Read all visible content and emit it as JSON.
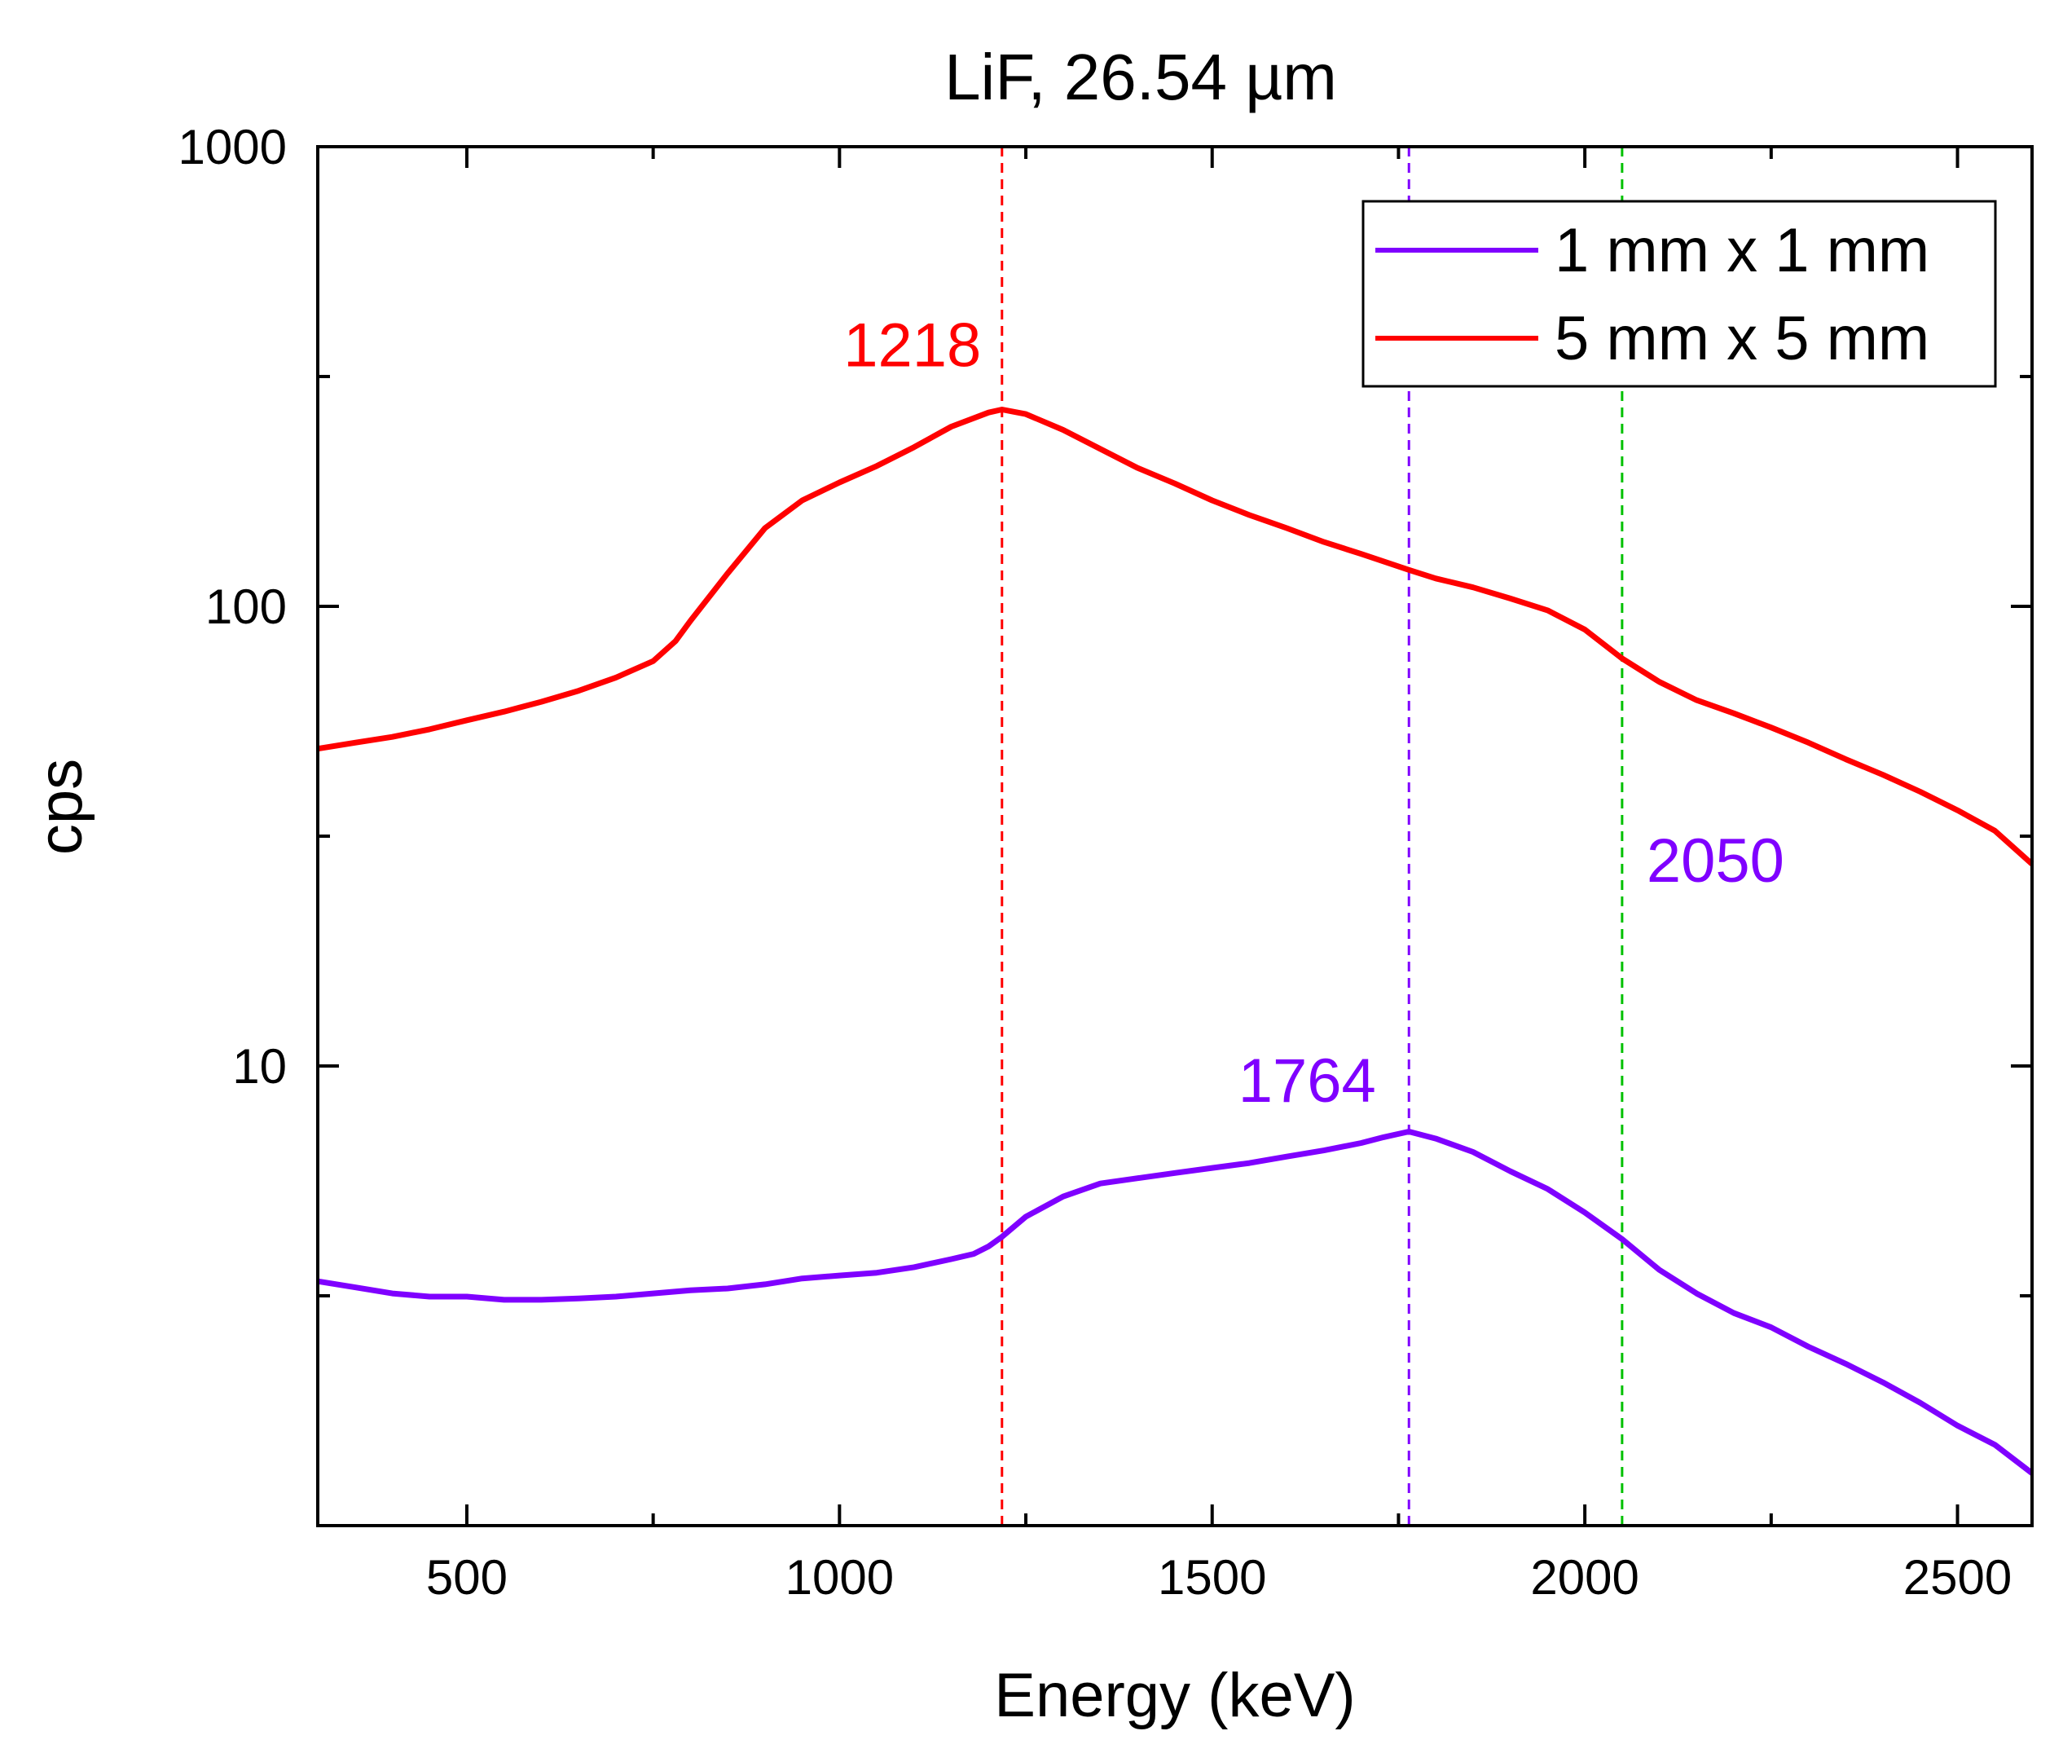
{
  "chart_data": {
    "type": "line",
    "title": "LiF, 26.54 µm",
    "xlabel": "Energy (keV)",
    "ylabel": "cps",
    "xlim": [
      300,
      2600
    ],
    "ylim": [
      1,
      1000
    ],
    "yscale": "log",
    "grid": false,
    "legend_position": "top-right",
    "x_ticks": [
      500,
      1000,
      1500,
      2000,
      2500
    ],
    "x_tick_labels": [
      "500",
      "1000",
      "1500",
      "2000",
      "2500"
    ],
    "y_ticks": [
      10,
      100,
      1000
    ],
    "y_tick_labels": [
      "10",
      "100",
      "1000"
    ],
    "series": [
      {
        "name": "1 mm x 1 mm",
        "color": "#7f00ff",
        "x": [
          300,
          350,
          400,
          450,
          500,
          550,
          600,
          650,
          700,
          750,
          800,
          850,
          900,
          950,
          1000,
          1050,
          1100,
          1150,
          1180,
          1200,
          1218,
          1250,
          1300,
          1350,
          1400,
          1450,
          1500,
          1550,
          1600,
          1650,
          1700,
          1730,
          1764,
          1800,
          1850,
          1900,
          1950,
          2000,
          2050,
          2100,
          2150,
          2200,
          2250,
          2300,
          2350,
          2400,
          2450,
          2500,
          2550,
          2600
        ],
        "y": [
          3.4,
          3.3,
          3.2,
          3.15,
          3.15,
          3.1,
          3.1,
          3.12,
          3.15,
          3.2,
          3.25,
          3.28,
          3.35,
          3.45,
          3.5,
          3.55,
          3.65,
          3.8,
          3.9,
          4.05,
          4.25,
          4.7,
          5.2,
          5.55,
          5.7,
          5.85,
          6.0,
          6.15,
          6.35,
          6.55,
          6.8,
          7.0,
          7.2,
          6.95,
          6.5,
          5.9,
          5.4,
          4.8,
          4.2,
          3.6,
          3.2,
          2.9,
          2.7,
          2.45,
          2.25,
          2.05,
          1.85,
          1.65,
          1.5,
          1.3
        ]
      },
      {
        "name": "5 mm x 5 mm",
        "color": "#ff0000",
        "x": [
          300,
          350,
          400,
          450,
          500,
          550,
          600,
          650,
          700,
          750,
          780,
          800,
          850,
          900,
          950,
          1000,
          1050,
          1100,
          1150,
          1200,
          1218,
          1250,
          1300,
          1350,
          1400,
          1450,
          1500,
          1550,
          1600,
          1650,
          1700,
          1764,
          1800,
          1850,
          1900,
          1950,
          2000,
          2050,
          2100,
          2150,
          2200,
          2250,
          2300,
          2350,
          2400,
          2450,
          2500,
          2550,
          2600
        ],
        "y": [
          49,
          50.5,
          52,
          54,
          56.5,
          59,
          62,
          65.5,
          70,
          76,
          84,
          93,
          118,
          148,
          170,
          186,
          202,
          222,
          246,
          264,
          268,
          262,
          242,
          220,
          200,
          185,
          170,
          158,
          148,
          138,
          130,
          120,
          115,
          110,
          104,
          98,
          89,
          77,
          68.5,
          62.5,
          58.5,
          54.5,
          50.5,
          46.5,
          43,
          39.5,
          36,
          32.5,
          27.5
        ]
      }
    ],
    "vlines": [
      {
        "x": 1218,
        "color": "#ff0000"
      },
      {
        "x": 1764,
        "color": "#7f00ff"
      },
      {
        "x": 2050,
        "color": "#00c000"
      }
    ],
    "annotations": [
      {
        "text": "1218",
        "color": "#ff0000",
        "x": 1218,
        "y": 370
      },
      {
        "text": "1764",
        "color": "#7f00ff",
        "x": 1764,
        "y": 9.3
      },
      {
        "text": "2050",
        "color": "#7f00ff",
        "x": 2050,
        "y": 28
      }
    ]
  }
}
